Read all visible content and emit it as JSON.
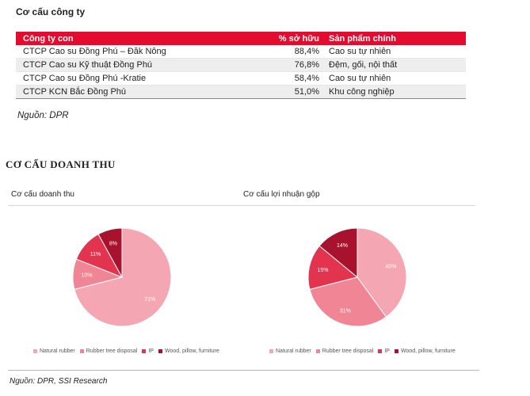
{
  "company_section": {
    "title": "Cơ cấu công ty",
    "headers": [
      "Công ty con",
      "% sở hữu",
      "Sản phẩm chính"
    ],
    "rows": [
      {
        "company": "CTCP Cao su Đồng Phú – Đăk Nông",
        "ownership": "88,4%",
        "product": "Cao su tự nhiên"
      },
      {
        "company": "CTCP Cao su Kỹ thuật Đồng Phú",
        "ownership": "76,8%",
        "product": "Đệm, gối, nội thất"
      },
      {
        "company": "CTCP Cao su Đồng Phú -Kratie",
        "ownership": "58,4%",
        "product": "Cao su tự nhiên"
      },
      {
        "company": "CTCP KCN Bắc Đồng Phú",
        "ownership": "51,0%",
        "product": "Khu công nghiệp"
      }
    ],
    "source": "Nguồn: DPR"
  },
  "revenue_section": {
    "title": "CƠ CẤU DOANH THU",
    "source": "Nguồn: DPR, SSI Research"
  },
  "chart_data": [
    {
      "type": "pie",
      "title": "Cơ cấu doanh thu",
      "labels": [
        "Natural rubber",
        "Rubber tree disposal",
        "IP",
        "Wood, pillow, furniture"
      ],
      "values": [
        71,
        10,
        11,
        8
      ],
      "value_labels": [
        "71%",
        "10%",
        "11%",
        "8%"
      ],
      "colors": [
        "#f4a7b3",
        "#ef8595",
        "#e3344f",
        "#a8122d"
      ]
    },
    {
      "type": "pie",
      "title": "Cơ cấu lợi nhuận gộp",
      "labels": [
        "Natural rubber",
        "Rubber tree disposal",
        "IP",
        "Wood, pillow, furniture"
      ],
      "values": [
        40,
        31,
        15,
        14
      ],
      "value_labels": [
        "40%",
        "31%",
        "15%",
        "14%"
      ],
      "colors": [
        "#f4a7b3",
        "#ef8595",
        "#e3344f",
        "#a8122d"
      ]
    }
  ]
}
